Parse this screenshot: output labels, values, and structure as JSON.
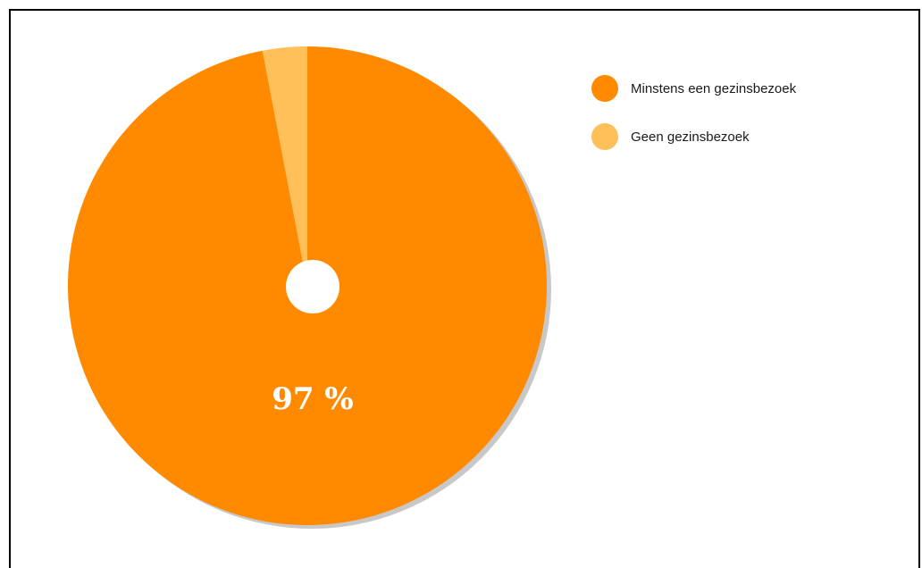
{
  "chart_data": {
    "type": "pie",
    "title": "",
    "categories": [
      "Minstens een gezinsbezoek",
      "Geen gezinsbezoek"
    ],
    "values": [
      97,
      3
    ],
    "colors": [
      "#ff8a00",
      "#ffc05a"
    ],
    "shadow_color": "#c8c8c8",
    "data_labels": [
      "97 %",
      ""
    ],
    "legend": {
      "placement": "top-right",
      "entries": [
        {
          "label": "Minstens een gezinsbezoek",
          "color": "#ff8a00"
        },
        {
          "label": "Geen gezinsbezoek",
          "color": "#ffc05a"
        }
      ]
    },
    "donut_hole": true
  }
}
